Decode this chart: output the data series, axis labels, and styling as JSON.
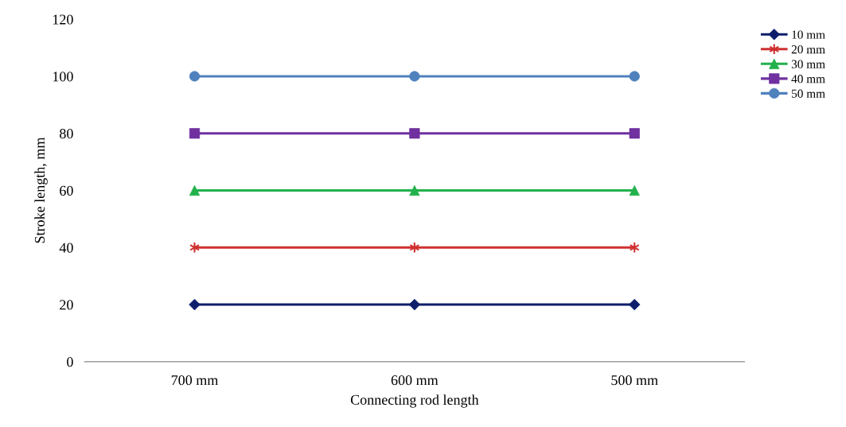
{
  "chart_data": {
    "type": "line",
    "xlabel": "Connecting rod length",
    "ylabel": "Stroke length, mm",
    "categories": [
      "700 mm",
      "600 mm",
      "500 mm"
    ],
    "series": [
      {
        "name": "10 mm",
        "color": "#0d1f6b",
        "marker": "diamond",
        "values": [
          20,
          20,
          20
        ]
      },
      {
        "name": "20 mm",
        "color": "#d03030",
        "marker": "cross",
        "values": [
          40,
          40,
          40
        ]
      },
      {
        "name": "30 mm",
        "color": "#22b14c",
        "marker": "triangle",
        "values": [
          60,
          60,
          60
        ]
      },
      {
        "name": "40 mm",
        "color": "#7030a0",
        "marker": "square",
        "values": [
          80,
          80,
          80
        ]
      },
      {
        "name": "50 mm",
        "color": "#4f81bd",
        "marker": "circle",
        "values": [
          100,
          100,
          100
        ]
      }
    ],
    "ylim": [
      0,
      120
    ],
    "yticks": [
      0,
      20,
      40,
      60,
      80,
      100,
      120
    ],
    "grid": false,
    "legend": "top right",
    "line_style": "solid"
  }
}
